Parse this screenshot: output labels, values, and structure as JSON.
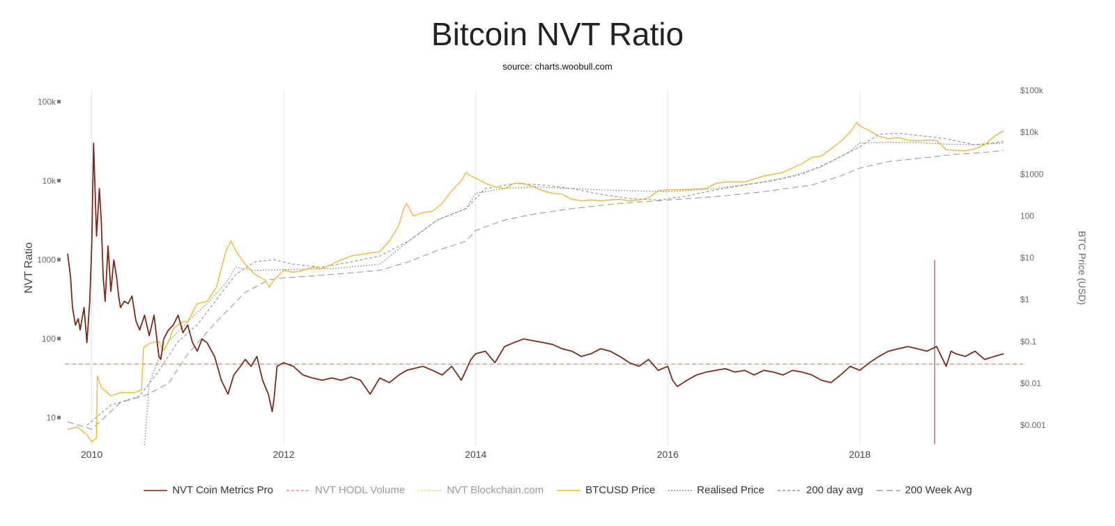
{
  "chart_data": {
    "type": "line",
    "title": "Bitcoin NVT Ratio",
    "subtitle": "source: charts.woobull.com",
    "ylabel": "NVT Ratio",
    "y2label": "BTC Price (USD)",
    "y_scale": "log",
    "y2_scale": "log",
    "ylim": [
      4.5,
      140000
    ],
    "y2lim": [
      0.00033,
      100000
    ],
    "xlim": [
      2009.72,
      2019.7
    ],
    "x_ticks": [
      {
        "value": 2010,
        "label": "2010"
      },
      {
        "value": 2012,
        "label": "2012"
      },
      {
        "value": 2014,
        "label": "2014"
      },
      {
        "value": 2016,
        "label": "2016"
      },
      {
        "value": 2018,
        "label": "2018"
      }
    ],
    "y_ticks": [
      {
        "value": 10,
        "label": "10"
      },
      {
        "value": 100,
        "label": "100"
      },
      {
        "value": 1000,
        "label": "1000"
      },
      {
        "value": 10000,
        "label": "10k"
      },
      {
        "value": 100000,
        "label": "100k"
      }
    ],
    "y2_ticks": [
      {
        "value": 0.001,
        "label": "$0.001"
      },
      {
        "value": 0.01,
        "label": "$0.01"
      },
      {
        "value": 0.1,
        "label": "$0.1"
      },
      {
        "value": 1,
        "label": "$1"
      },
      {
        "value": 10,
        "label": "$10"
      },
      {
        "value": 100,
        "label": "100"
      },
      {
        "value": 1000,
        "label": "$1000"
      },
      {
        "value": 10000,
        "label": "$10k"
      },
      {
        "value": 100000,
        "label": "$100k"
      }
    ],
    "grid": "vertical",
    "legend_position": "bottom",
    "reference_line": {
      "y": 48,
      "color": "#e07a72"
    },
    "marker_line": {
      "x": 2018.78,
      "y_top": 1000,
      "color": "#e0344f"
    },
    "series": [
      {
        "name": "NVT Coin Metrics Pro",
        "axis": "left",
        "color": "#7a2a16",
        "style": "solid",
        "x": [
          2009.75,
          2009.78,
          2009.8,
          2009.83,
          2009.86,
          2009.88,
          2009.92,
          2009.95,
          2009.98,
          2010.0,
          2010.02,
          2010.05,
          2010.08,
          2010.1,
          2010.12,
          2010.14,
          2010.17,
          2010.2,
          2010.23,
          2010.26,
          2010.28,
          2010.3,
          2010.34,
          2010.38,
          2010.42,
          2010.46,
          2010.5,
          2010.55,
          2010.6,
          2010.65,
          2010.7,
          2010.72,
          2010.75,
          2010.8,
          2010.85,
          2010.9,
          2010.95,
          2011.0,
          2011.05,
          2011.1,
          2011.15,
          2011.2,
          2011.28,
          2011.35,
          2011.42,
          2011.48,
          2011.55,
          2011.6,
          2011.66,
          2011.72,
          2011.78,
          2011.84,
          2011.88,
          2011.9,
          2011.93,
          2012.0,
          2012.1,
          2012.2,
          2012.3,
          2012.4,
          2012.5,
          2012.6,
          2012.7,
          2012.8,
          2012.9,
          2013.0,
          2013.1,
          2013.2,
          2013.28,
          2013.35,
          2013.45,
          2013.55,
          2013.65,
          2013.75,
          2013.85,
          2013.95,
          2014.0,
          2014.1,
          2014.2,
          2014.3,
          2014.4,
          2014.5,
          2014.6,
          2014.7,
          2014.8,
          2014.9,
          2015.0,
          2015.1,
          2015.2,
          2015.3,
          2015.4,
          2015.5,
          2015.6,
          2015.7,
          2015.8,
          2015.9,
          2016.0,
          2016.05,
          2016.1,
          2016.2,
          2016.3,
          2016.4,
          2016.5,
          2016.6,
          2016.7,
          2016.8,
          2016.9,
          2017.0,
          2017.1,
          2017.2,
          2017.3,
          2017.4,
          2017.5,
          2017.6,
          2017.7,
          2017.8,
          2017.9,
          2018.0,
          2018.1,
          2018.2,
          2018.3,
          2018.4,
          2018.5,
          2018.6,
          2018.7,
          2018.8,
          2018.85,
          2018.9,
          2018.95,
          2019.0,
          2019.1,
          2019.2,
          2019.3,
          2019.4,
          2019.5
        ],
        "y": [
          1200,
          600,
          250,
          150,
          180,
          130,
          250,
          90,
          300,
          1500,
          30000,
          2000,
          8000,
          3000,
          600,
          300,
          1500,
          400,
          1000,
          600,
          350,
          250,
          300,
          280,
          350,
          170,
          130,
          200,
          110,
          200,
          60,
          55,
          100,
          130,
          150,
          200,
          120,
          150,
          90,
          70,
          100,
          90,
          60,
          30,
          20,
          35,
          45,
          55,
          45,
          60,
          30,
          20,
          12,
          18,
          45,
          50,
          45,
          35,
          32,
          30,
          32,
          30,
          33,
          30,
          20,
          32,
          28,
          35,
          40,
          42,
          45,
          40,
          35,
          45,
          30,
          55,
          65,
          70,
          50,
          80,
          90,
          100,
          95,
          90,
          85,
          75,
          70,
          60,
          65,
          75,
          70,
          60,
          50,
          45,
          55,
          40,
          45,
          30,
          25,
          30,
          35,
          38,
          40,
          42,
          38,
          40,
          35,
          40,
          38,
          35,
          40,
          38,
          35,
          30,
          28,
          35,
          45,
          40,
          50,
          60,
          70,
          75,
          80,
          75,
          70,
          80,
          60,
          45,
          70,
          65,
          60,
          70,
          55,
          60,
          65
        ],
        "y_format": "number"
      },
      {
        "name": "NVT HODL Volume",
        "axis": "left",
        "color": "#e58e87",
        "style": "dashed",
        "x": [],
        "y": []
      },
      {
        "name": "NVT Blockchain.com",
        "axis": "left",
        "color": "#f0b870",
        "style": "dotted",
        "x": [],
        "y": []
      },
      {
        "name": "BTCUSD Price",
        "axis": "right",
        "color": "#f2b731",
        "style": "solid",
        "x": [
          2009.75,
          2009.85,
          2009.95,
          2010.0,
          2010.05,
          2010.06,
          2010.1,
          2010.2,
          2010.3,
          2010.45,
          2010.52,
          2010.54,
          2010.6,
          2010.7,
          2010.75,
          2010.8,
          2010.85,
          2010.9,
          2010.95,
          2011.0,
          2011.1,
          2011.2,
          2011.3,
          2011.4,
          2011.45,
          2011.5,
          2011.55,
          2011.6,
          2011.7,
          2011.8,
          2011.85,
          2011.9,
          2012.0,
          2012.1,
          2012.2,
          2012.3,
          2012.4,
          2012.5,
          2012.6,
          2012.7,
          2012.8,
          2012.9,
          2013.0,
          2013.1,
          2013.2,
          2013.25,
          2013.28,
          2013.35,
          2013.45,
          2013.55,
          2013.65,
          2013.75,
          2013.85,
          2013.9,
          2013.95,
          2014.0,
          2014.1,
          2014.2,
          2014.3,
          2014.4,
          2014.5,
          2014.6,
          2014.7,
          2014.8,
          2014.9,
          2015.0,
          2015.1,
          2015.2,
          2015.3,
          2015.4,
          2015.5,
          2015.6,
          2015.7,
          2015.8,
          2015.9,
          2016.0,
          2016.2,
          2016.4,
          2016.5,
          2016.6,
          2016.8,
          2017.0,
          2017.2,
          2017.4,
          2017.5,
          2017.6,
          2017.7,
          2017.8,
          2017.9,
          2017.97,
          2018.0,
          2018.1,
          2018.2,
          2018.3,
          2018.4,
          2018.5,
          2018.6,
          2018.7,
          2018.8,
          2018.9,
          2019.0,
          2019.1,
          2019.2,
          2019.3,
          2019.4,
          2019.5
        ],
        "y": [
          0.0008,
          0.0009,
          0.0006,
          0.0004,
          0.0005,
          0.015,
          0.008,
          0.005,
          0.006,
          0.006,
          0.007,
          0.07,
          0.09,
          0.1,
          0.06,
          0.1,
          0.2,
          0.25,
          0.3,
          0.3,
          0.8,
          0.9,
          2,
          15,
          25,
          15,
          10,
          7,
          4,
          3,
          2,
          3,
          5,
          4.5,
          5,
          6,
          5.5,
          7,
          9,
          11,
          12,
          13,
          14,
          25,
          60,
          150,
          200,
          100,
          120,
          130,
          200,
          400,
          700,
          1100,
          900,
          800,
          600,
          500,
          450,
          600,
          600,
          500,
          400,
          350,
          330,
          250,
          230,
          240,
          230,
          240,
          250,
          230,
          240,
          270,
          400,
          420,
          430,
          450,
          600,
          650,
          650,
          900,
          1100,
          1800,
          2500,
          2700,
          4000,
          6000,
          10000,
          17500,
          14000,
          11000,
          8000,
          7000,
          7500,
          6500,
          6300,
          6500,
          6400,
          3800,
          3700,
          3600,
          4000,
          5000,
          8000,
          11000
        ],
        "y_format": "currency"
      },
      {
        "name": "Realised Price",
        "axis": "right",
        "color": "#707070",
        "style": "dotted",
        "x": [
          2010.55,
          2010.6,
          2010.7,
          2010.8,
          2011.0,
          2011.2,
          2011.4,
          2011.5,
          2011.7,
          2012.0,
          2012.5,
          2013.0,
          2013.3,
          2013.6,
          2013.9,
          2014.0,
          2014.3,
          2014.6,
          2014.9,
          2015.2,
          2015.6,
          2016.0,
          2016.5,
          2017.0,
          2017.3,
          2017.6,
          2017.9,
          2018.0,
          2018.3,
          2018.6,
          2018.9,
          2019.2,
          2019.5
        ],
        "y": [
          3e-05,
          0.01,
          0.04,
          0.1,
          0.3,
          0.8,
          2.5,
          6,
          5,
          5.2,
          5.5,
          7,
          25,
          80,
          150,
          350,
          450,
          500,
          460,
          430,
          400,
          380,
          450,
          650,
          900,
          1500,
          3500,
          5500,
          5800,
          5700,
          5200,
          5000,
          5500
        ],
        "y_format": "currency"
      },
      {
        "name": "200 day avg",
        "axis": "right",
        "color": "#909090",
        "style": "dashed",
        "x": [
          2009.95,
          2010.2,
          2010.5,
          2010.7,
          2010.9,
          2011.1,
          2011.3,
          2011.5,
          2011.7,
          2011.9,
          2012.1,
          2012.4,
          2012.7,
          2013.0,
          2013.3,
          2013.6,
          2013.9,
          2014.1,
          2014.4,
          2014.7,
          2015.0,
          2015.3,
          2015.6,
          2015.9,
          2016.2,
          2016.5,
          2016.8,
          2017.1,
          2017.4,
          2017.7,
          2018.0,
          2018.2,
          2018.4,
          2018.6,
          2018.9,
          2019.2,
          2019.5
        ],
        "y": [
          0.001,
          0.003,
          0.005,
          0.02,
          0.1,
          0.25,
          1,
          4,
          8,
          9,
          7,
          6,
          8,
          11,
          25,
          80,
          150,
          450,
          600,
          550,
          450,
          330,
          260,
          240,
          300,
          420,
          550,
          700,
          1000,
          2000,
          4500,
          9000,
          9500,
          8500,
          7000,
          5000,
          6000
        ],
        "y_format": "currency"
      },
      {
        "name": "200 Week Avg",
        "axis": "right",
        "color": "#9a9a9a",
        "style": "longdash",
        "x": [
          2009.75,
          2010.0,
          2010.3,
          2010.55,
          2010.8,
          2011.0,
          2011.3,
          2011.6,
          2011.85,
          2012.0,
          2012.5,
          2013.0,
          2013.3,
          2013.6,
          2013.9,
          2014.0,
          2014.3,
          2014.6,
          2015.0,
          2015.5,
          2016.0,
          2016.5,
          2017.0,
          2017.5,
          2017.8,
          2018.0,
          2018.3,
          2018.7,
          2019.0,
          2019.3,
          2019.5
        ],
        "y": [
          0.0012,
          0.0008,
          0.0035,
          0.005,
          0.01,
          0.05,
          0.3,
          1.5,
          3,
          3.3,
          4,
          5,
          8,
          15,
          25,
          45,
          80,
          110,
          150,
          200,
          240,
          290,
          380,
          550,
          900,
          1400,
          2000,
          2500,
          3000,
          3300,
          3700
        ],
        "y_format": "currency"
      }
    ]
  }
}
